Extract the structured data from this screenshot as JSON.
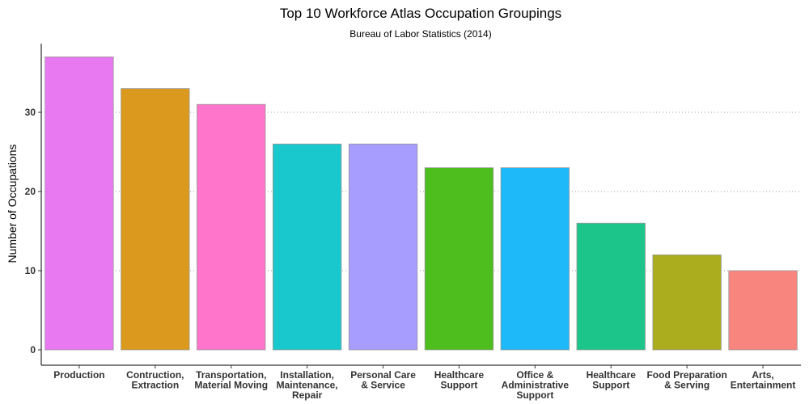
{
  "chart_data": {
    "type": "bar",
    "title": "Top 10 Workforce Atlas Occupation Groupings",
    "subtitle": "Bureau of Labor Statistics (2014)",
    "xlabel": "",
    "ylabel": "Number of Occupations",
    "categories": [
      "Production",
      "Contruction, Extraction",
      "Transportation, Material Moving",
      "Installation, Maintenance, Repair",
      "Personal Care & Service",
      "Healthcare Support",
      "Office & Administrative Support",
      "Healthcare Support",
      "Food Preparation & Serving",
      "Arts, Entertainment"
    ],
    "category_lines": [
      [
        "Production"
      ],
      [
        "Contruction,",
        "Extraction"
      ],
      [
        "Transportation,",
        "Material Moving"
      ],
      [
        "Installation,",
        "Maintenance,",
        "Repair"
      ],
      [
        "Personal Care",
        "& Service"
      ],
      [
        "Healthcare",
        "Support"
      ],
      [
        "Office &",
        "Administrative",
        "Support"
      ],
      [
        "Healthcare",
        "Support"
      ],
      [
        "Food Preparation",
        "& Serving"
      ],
      [
        "Arts,",
        "Entertainment"
      ]
    ],
    "values": [
      37,
      33,
      31,
      26,
      26,
      23,
      23,
      16,
      12,
      10
    ],
    "colors": [
      "#E879F0",
      "#DB9A1E",
      "#FF75CB",
      "#18C8CC",
      "#A79DFF",
      "#4EBE1E",
      "#1DB9F8",
      "#1CC68B",
      "#ABAD1E",
      "#F8857E"
    ],
    "yticks": [
      0,
      10,
      20,
      30
    ],
    "ylim": [
      0,
      38.8
    ],
    "grid": "horizontal-dotted",
    "legend": "none"
  }
}
